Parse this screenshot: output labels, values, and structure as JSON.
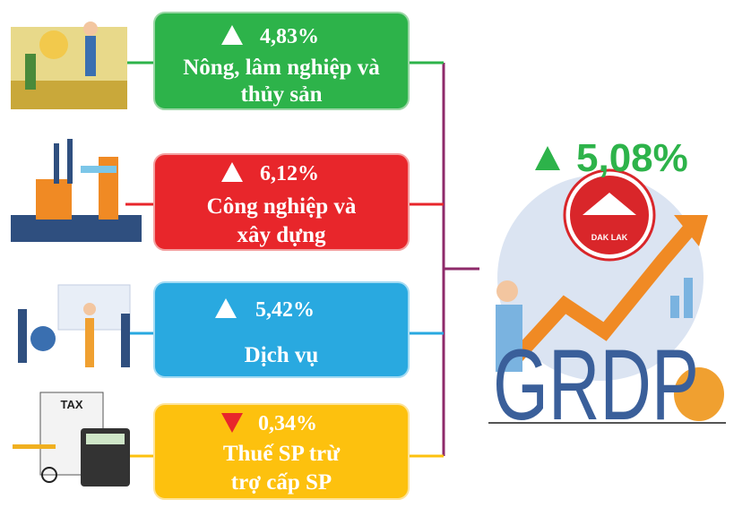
{
  "sectors": [
    {
      "change": "4,83%",
      "label": [
        "Nông, lâm nghiệp và",
        "thủy sản"
      ]
    },
    {
      "change": "6,12%",
      "label": [
        "Công nghiệp và",
        "xây dựng"
      ]
    },
    {
      "change": "5,42%",
      "label": [
        "Dịch vụ"
      ]
    },
    {
      "change": "0,34%",
      "label": [
        "Thuế SP trừ",
        "trợ cấp SP"
      ]
    }
  ],
  "total": {
    "change": "5,08%",
    "title": "GRDP",
    "logo": "DAK LAK"
  },
  "tax_icon": "TAX"
}
